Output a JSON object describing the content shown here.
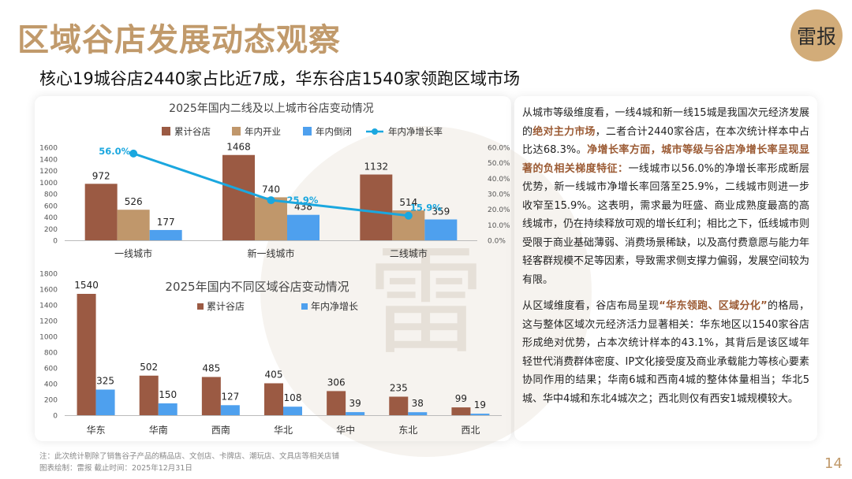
{
  "header": {
    "title": "区域谷店发展动态观察",
    "brand": "雷报",
    "subtitle": "核心19城谷店2440家占比近7成，华东谷店1540家领跑区域市场"
  },
  "colors": {
    "total": "#9b5a43",
    "opened": "#c0976b",
    "closed": "#4ea0ee",
    "rate": "#1aa7df",
    "accent": "#c19a6b"
  },
  "chart_data": [
    {
      "type": "bar+line",
      "title": "2025年国内二线及以上城市谷店变动情况",
      "categories": [
        "一线城市",
        "新一线城市",
        "二线城市"
      ],
      "series": [
        {
          "name": "累计谷店",
          "values": [
            972,
            1468,
            1132
          ]
        },
        {
          "name": "年内开业",
          "values": [
            526,
            740,
            514
          ]
        },
        {
          "name": "年内倒闭",
          "values": [
            177,
            438,
            359
          ]
        },
        {
          "name": "年内净增长率",
          "values": [
            56.0,
            25.9,
            15.9
          ],
          "labels": [
            "56.0%",
            "25.9%",
            "15.9%"
          ],
          "axis": "right"
        }
      ],
      "y_left": {
        "ticks": [
          "0",
          "200",
          "400",
          "600",
          "800",
          "1000",
          "1200",
          "1400",
          "1600"
        ],
        "ylim": [
          0,
          1600
        ]
      },
      "y_right": {
        "ticks": [
          "0.0%",
          "10.0%",
          "20.0%",
          "30.0%",
          "40.0%",
          "50.0%",
          "60.0%"
        ],
        "ylim": [
          0,
          60
        ]
      },
      "legend": "top"
    },
    {
      "type": "bar",
      "title": "2025年国内不同区域谷店变动情况",
      "categories": [
        "华东",
        "华南",
        "西南",
        "华北",
        "华中",
        "东北",
        "西北"
      ],
      "series": [
        {
          "name": "累计谷店",
          "values": [
            1540,
            502,
            485,
            405,
            306,
            235,
            99
          ]
        },
        {
          "name": "年内净增长",
          "values": [
            325,
            150,
            127,
            108,
            39,
            38,
            19
          ]
        }
      ],
      "y": {
        "ticks": [
          "0",
          "200",
          "400",
          "600",
          "800",
          "1000",
          "1200",
          "1400",
          "1600",
          "1800"
        ],
        "ylim": [
          0,
          1800
        ]
      },
      "legend": "right"
    }
  ],
  "analysis": {
    "p1": [
      {
        "t": "从城市等级维度看，一线4城和新一线15城是我国次元经济发展的"
      },
      {
        "t": "绝对主力市场",
        "hl": true
      },
      {
        "t": "，二者合计2440家谷店，在本次统计样本中占比达68.3%。"
      },
      {
        "t": "净增长率方面，城市等级与谷店净增长率呈现显著的负相关梯度特征：",
        "hl": true
      },
      {
        "t": "一线城市以56.0%的净增长率形成断层优势，新一线城市净增长率回落至25.9%，二线城市则进一步收窄至15.9%。这表明，需求最为旺盛、商业成熟度最高的高线城市，仍在持续释放可观的增长红利；相比之下，低线城市则受限于商业基础薄弱、消费场景稀缺，以及高付费意愿与能力年轻客群规模不足等因素，导致需求侧支撑力偏弱，发展空间较为有限。"
      }
    ],
    "p2": [
      {
        "t": "从区域维度看，谷店布局呈现"
      },
      {
        "t": "“华东领跑、区域分化”",
        "hl": true
      },
      {
        "t": "的格局，这与整体区域次元经济活力显著相关：华东地区以1540家谷店形成绝对优势，占本次统计样本的43.1%，其背后是该区域年轻世代消费群体密度、IP文化接受度及商业承载能力等核心要素协同作用的结果；华南6城和西南4城的整体体量相当；华北5城、华中4城和东北4城次之；西北则仅有西安1城规模较大。"
      }
    ]
  },
  "footer": {
    "note": "注：此次统计剔除了销售谷子产品的精品店、文创店、卡牌店、潮玩店、文具店等相关店铺",
    "source": "图表绘制：雷报  截止时间：2025年12月31日",
    "page": "14"
  }
}
